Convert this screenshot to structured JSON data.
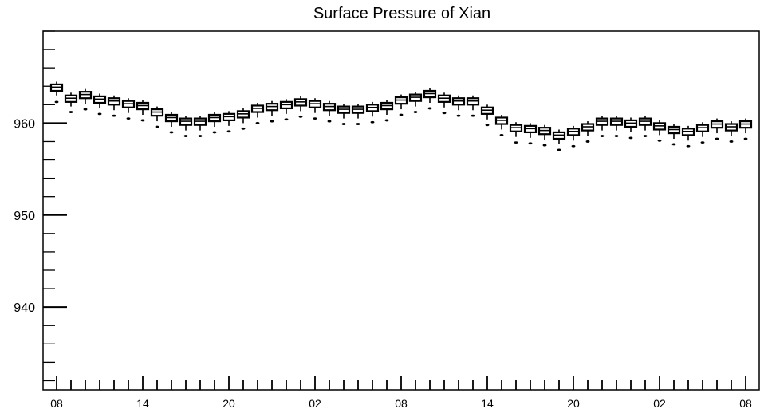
{
  "chart_data": {
    "type": "box",
    "title": "Surface Pressure of Xian",
    "xlabel": "",
    "ylabel": "",
    "ylim": [
      931,
      970
    ],
    "y_ticks": [
      940,
      950,
      960
    ],
    "x_tick_labels": [
      "08",
      "14",
      "20",
      "02",
      "08",
      "14",
      "20",
      "02",
      "08"
    ],
    "grid": false,
    "legend": "none",
    "color": "#000000",
    "series": [
      {
        "median": [
          963.9,
          962.7,
          963.1,
          962.6,
          962.4,
          962.1,
          961.9,
          961.2,
          960.6,
          960.2,
          960.2,
          960.6,
          960.7,
          961.0,
          961.6,
          961.8,
          962.0,
          962.3,
          962.1,
          961.8,
          961.5,
          961.5,
          961.7,
          961.9,
          962.5,
          962.8,
          963.2,
          962.7,
          962.4,
          962.4,
          961.4,
          960.3,
          959.5,
          959.4,
          959.2,
          958.7,
          959.1,
          959.6,
          960.2,
          960.2,
          960.0,
          960.2,
          959.7,
          959.3,
          959.1,
          959.5,
          959.9,
          959.6,
          959.9
        ],
        "q1": [
          963.5,
          962.3,
          962.7,
          962.2,
          962.0,
          961.7,
          961.5,
          960.8,
          960.2,
          959.8,
          959.8,
          960.2,
          960.3,
          960.6,
          961.2,
          961.4,
          961.6,
          961.9,
          961.7,
          961.4,
          961.1,
          961.1,
          961.3,
          961.5,
          962.1,
          962.4,
          962.8,
          962.3,
          962.0,
          962.0,
          961.0,
          959.9,
          959.1,
          959.0,
          958.8,
          958.3,
          958.7,
          959.2,
          959.8,
          959.8,
          959.6,
          959.8,
          959.3,
          958.9,
          958.7,
          959.1,
          959.5,
          959.2,
          959.5
        ],
        "q3": [
          964.2,
          963.0,
          963.4,
          962.9,
          962.7,
          962.4,
          962.2,
          961.5,
          960.9,
          960.5,
          960.5,
          960.9,
          961.0,
          961.3,
          961.9,
          962.1,
          962.3,
          962.6,
          962.4,
          962.1,
          961.8,
          961.8,
          962.0,
          962.2,
          962.8,
          963.1,
          963.5,
          963.0,
          962.7,
          962.7,
          961.7,
          960.6,
          959.8,
          959.7,
          959.5,
          959.0,
          959.4,
          959.9,
          960.5,
          960.5,
          960.3,
          960.5,
          960.0,
          959.6,
          959.4,
          959.8,
          960.2,
          959.9,
          960.2
        ],
        "whisker_low": [
          963.0,
          961.8,
          962.1,
          961.6,
          961.4,
          961.1,
          960.9,
          960.2,
          959.6,
          959.2,
          959.2,
          959.6,
          959.7,
          960.0,
          960.6,
          960.8,
          961.0,
          961.3,
          961.1,
          960.8,
          960.5,
          960.5,
          960.7,
          960.9,
          961.5,
          961.8,
          962.2,
          961.7,
          961.4,
          961.4,
          960.4,
          959.3,
          958.5,
          958.4,
          958.2,
          957.7,
          958.1,
          958.6,
          959.2,
          959.2,
          959.0,
          959.2,
          958.7,
          958.3,
          958.1,
          958.5,
          958.9,
          958.6,
          958.9
        ],
        "whisker_high": [
          964.5,
          963.3,
          963.7,
          963.2,
          963.0,
          962.7,
          962.5,
          961.8,
          961.2,
          960.8,
          960.8,
          961.2,
          961.3,
          961.6,
          962.2,
          962.4,
          962.6,
          962.9,
          962.7,
          962.4,
          962.1,
          962.1,
          962.3,
          962.5,
          963.1,
          963.4,
          963.8,
          963.3,
          963.0,
          963.0,
          962.0,
          960.9,
          960.1,
          960.0,
          959.8,
          959.3,
          959.7,
          960.2,
          960.8,
          960.8,
          960.6,
          960.8,
          960.3,
          959.9,
          959.7,
          960.1,
          960.5,
          960.2,
          960.5
        ],
        "outlier": [
          962.3,
          961.2,
          961.5,
          961.0,
          960.8,
          960.5,
          960.3,
          959.6,
          959.0,
          958.6,
          958.6,
          959.0,
          959.1,
          959.4,
          960.0,
          960.2,
          960.4,
          960.7,
          960.5,
          960.2,
          959.9,
          959.9,
          960.1,
          960.3,
          960.9,
          961.2,
          961.6,
          961.1,
          960.8,
          960.8,
          959.8,
          958.7,
          957.9,
          957.8,
          957.6,
          957.1,
          957.5,
          958.0,
          958.6,
          958.6,
          958.4,
          958.6,
          958.1,
          957.7,
          957.5,
          957.9,
          958.3,
          958.0,
          958.3
        ]
      }
    ]
  }
}
